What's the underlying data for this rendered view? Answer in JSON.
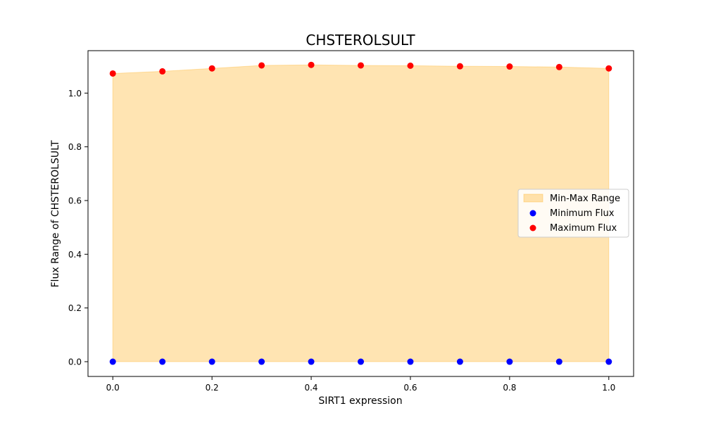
{
  "chart_data": {
    "type": "area",
    "title": "CHSTEROLSULT",
    "xlabel": "SIRT1 expression",
    "ylabel": "Flux Range of CHSTEROLSULT",
    "x": [
      0.0,
      0.1,
      0.2,
      0.3,
      0.4,
      0.5,
      0.6,
      0.7,
      0.8,
      0.9,
      1.0
    ],
    "series": [
      {
        "name": "Minimum Flux",
        "values": [
          0,
          0,
          0,
          0,
          0,
          0,
          0,
          0,
          0,
          0,
          0
        ],
        "color": "#0000ff"
      },
      {
        "name": "Maximum Flux",
        "values": [
          1.073,
          1.081,
          1.092,
          1.103,
          1.105,
          1.103,
          1.102,
          1.1,
          1.099,
          1.097,
          1.092
        ],
        "color": "#ff0000"
      }
    ],
    "fill": {
      "name": "Min-Max Range",
      "color": "#ffa500",
      "opacity": 0.3
    },
    "xlim": [
      -0.05,
      1.05
    ],
    "ylim": [
      -0.055,
      1.158
    ],
    "xticks": [
      "0.0",
      "0.2",
      "0.4",
      "0.6",
      "0.8",
      "1.0"
    ],
    "yticks": [
      "0.0",
      "0.2",
      "0.4",
      "0.6",
      "0.8",
      "1.0"
    ],
    "grid": false,
    "legend": {
      "position": "center-right",
      "entries": [
        "Min-Max Range",
        "Minimum Flux",
        "Maximum Flux"
      ]
    }
  }
}
